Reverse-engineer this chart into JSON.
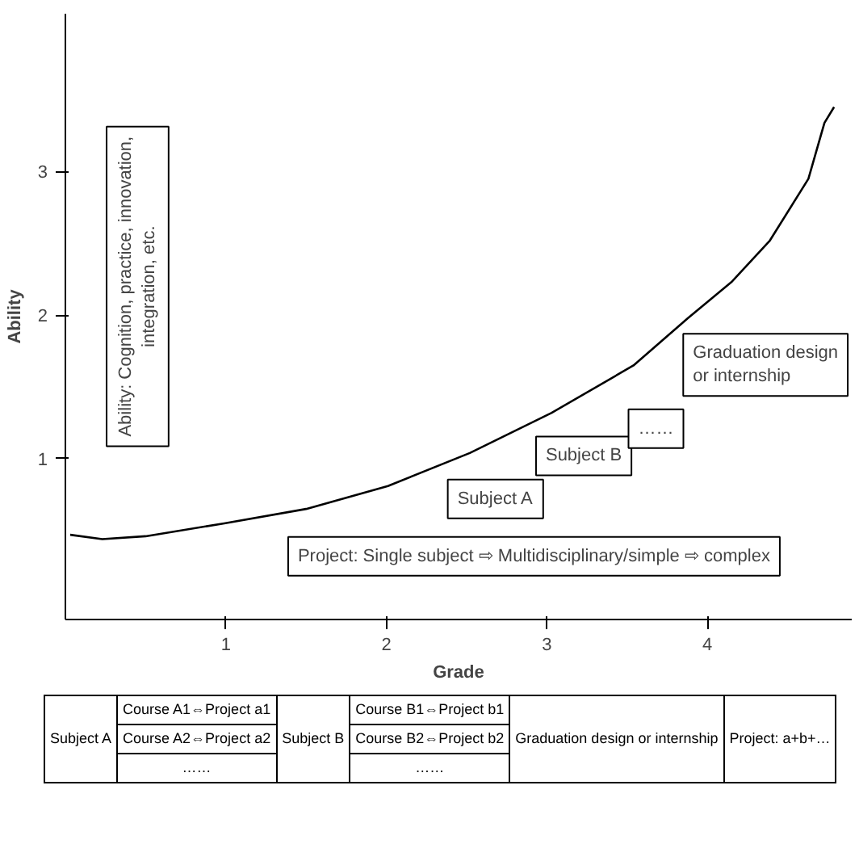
{
  "chart_data": {
    "type": "line",
    "xlabel": "Grade",
    "ylabel": "Ability",
    "x": [
      0.03,
      0.23,
      0.5,
      0.99,
      1.5,
      2.01,
      2.52,
      3.03,
      3.54,
      3.88,
      4.15,
      4.39,
      4.63,
      4.73,
      4.79
    ],
    "series": [
      {
        "color": "#000000",
        "values": [
          0.47,
          0.44,
          0.46,
          0.55,
          0.65,
          0.81,
          1.04,
          1.32,
          1.65,
          1.98,
          2.23,
          2.52,
          2.95,
          3.34,
          3.45
        ]
      }
    ],
    "xlim": [
      0,
      4.9
    ],
    "ylim": [
      -0.12,
      4.1
    ],
    "xticks": [
      1,
      2,
      3,
      4
    ],
    "yticks": [
      1,
      2,
      3
    ],
    "grid": false,
    "marker": "none",
    "line_style": "solid",
    "annotations": [
      "Ability: Cognition, practice, innovation, integration, etc.",
      "Project: Single subject ⇨ Multidisciplinary/simple ⇨ complex",
      "Subject A",
      "Subject B",
      "……",
      "Graduation design or internship",
      "Subject A",
      "Course A1⇔Project a1",
      "Course A2⇔Project a2",
      "……",
      "Subject B",
      "Course B1⇔Project b1",
      "Course B2⇔Project b2",
      "……",
      "Graduation design or internship",
      "Project: a+b+…"
    ]
  }
}
